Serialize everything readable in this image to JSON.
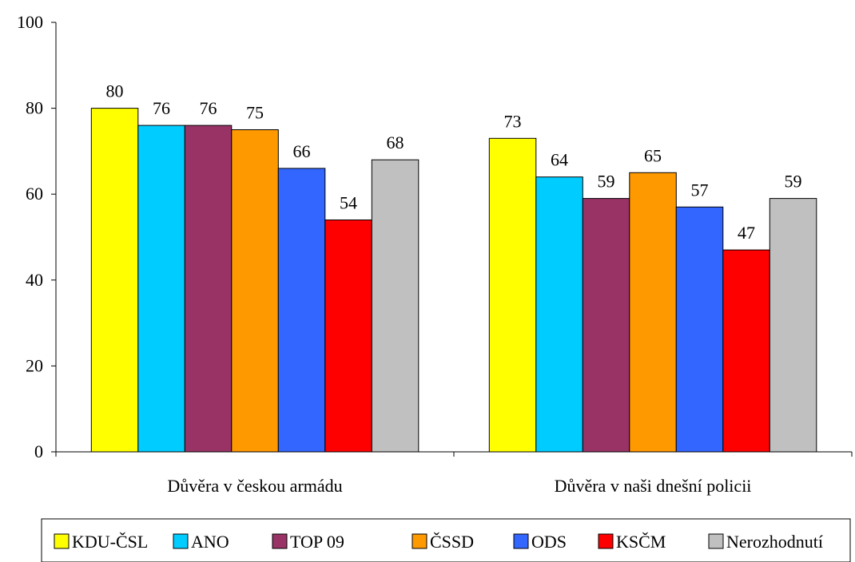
{
  "chart_data": {
    "type": "bar",
    "categories": [
      "Důvěra v českou armádu",
      "Důvěra v naši dnešní policii"
    ],
    "series": [
      {
        "name": "KDU-ČSL",
        "values": [
          80,
          73
        ],
        "color": "#FFFF00"
      },
      {
        "name": "ANO",
        "values": [
          76,
          64
        ],
        "color": "#00CCFF"
      },
      {
        "name": "TOP 09",
        "values": [
          76,
          59
        ],
        "color": "#993366"
      },
      {
        "name": "ČSSD",
        "values": [
          75,
          65
        ],
        "color": "#FF9900"
      },
      {
        "name": "ODS",
        "values": [
          66,
          57
        ],
        "color": "#3366FF"
      },
      {
        "name": "KSČM",
        "values": [
          54,
          47
        ],
        "color": "#FF0000"
      },
      {
        "name": "Nerozhodnutí",
        "values": [
          68,
          59
        ],
        "color": "#C0C0C0"
      }
    ],
    "ylim": [
      0,
      100
    ],
    "yticks": [
      0,
      20,
      40,
      60,
      80,
      100
    ],
    "title": "",
    "xlabel": "",
    "ylabel": "",
    "grid": false,
    "legend": "bottom",
    "data_labels": true
  }
}
